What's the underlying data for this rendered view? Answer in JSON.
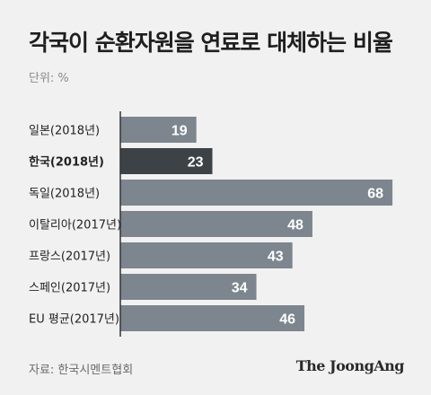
{
  "header": {
    "title": "각국이 순환자원을 연료로 대체하는 비율",
    "unit": "단위: %"
  },
  "footer": {
    "source": "자료: 한국시멘트협회",
    "brand": "The JoongAng"
  },
  "colors": {
    "bar": "#7d868f",
    "highlight": "#3d4246",
    "axis": "#333333",
    "label_text": "#222222",
    "value_text": "#ffffff"
  },
  "chart_data": {
    "type": "bar",
    "orientation": "horizontal",
    "categories": [
      "일본(2018년)",
      "한국(2018년)",
      "독일(2018년)",
      "이탈리아(2017년)",
      "프랑스(2017년)",
      "스페인(2017년)",
      "EU 평균(2017년)"
    ],
    "values": [
      19,
      23,
      68,
      48,
      43,
      34,
      46
    ],
    "highlight_index": 1,
    "xlim": [
      0,
      70
    ],
    "grid": false,
    "legend": "none",
    "data_labels": true
  }
}
